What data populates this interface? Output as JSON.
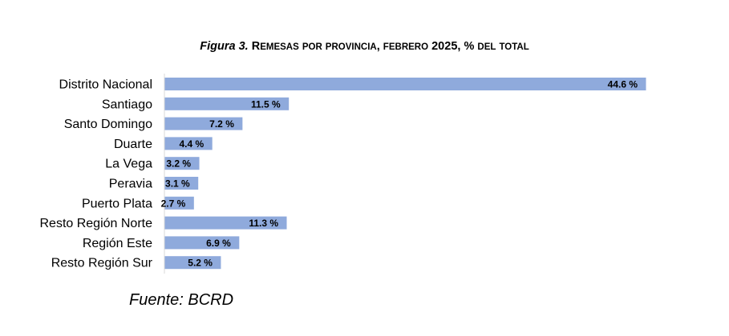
{
  "chart_data": {
    "type": "bar",
    "orientation": "horizontal",
    "title_prefix": "Figura 3.",
    "title": "Remesas por provincia, febrero 2025, % del total",
    "categories": [
      "Distrito Nacional",
      "Santiago",
      "Santo Domingo",
      "Duarte",
      "La Vega",
      "Peravia",
      "Puerto Plata",
      "Resto Región Norte",
      "Región Este",
      "Resto Región Sur"
    ],
    "values": [
      44.6,
      11.5,
      7.2,
      4.4,
      3.2,
      3.1,
      2.7,
      11.3,
      6.9,
      5.2
    ],
    "value_labels": [
      "44.6 %",
      "11.5 %",
      "7.2 %",
      "4.4 %",
      "3.2 %",
      "3.1 %",
      "2.7 %",
      "11.3 %",
      "6.9 %",
      "5.2 %"
    ],
    "xlim": [
      0,
      50
    ],
    "grid": false,
    "legend": "none",
    "bar_color": "#8FAADC",
    "axis_color": "#D9D9D9"
  },
  "source": "Fuente: BCRD"
}
